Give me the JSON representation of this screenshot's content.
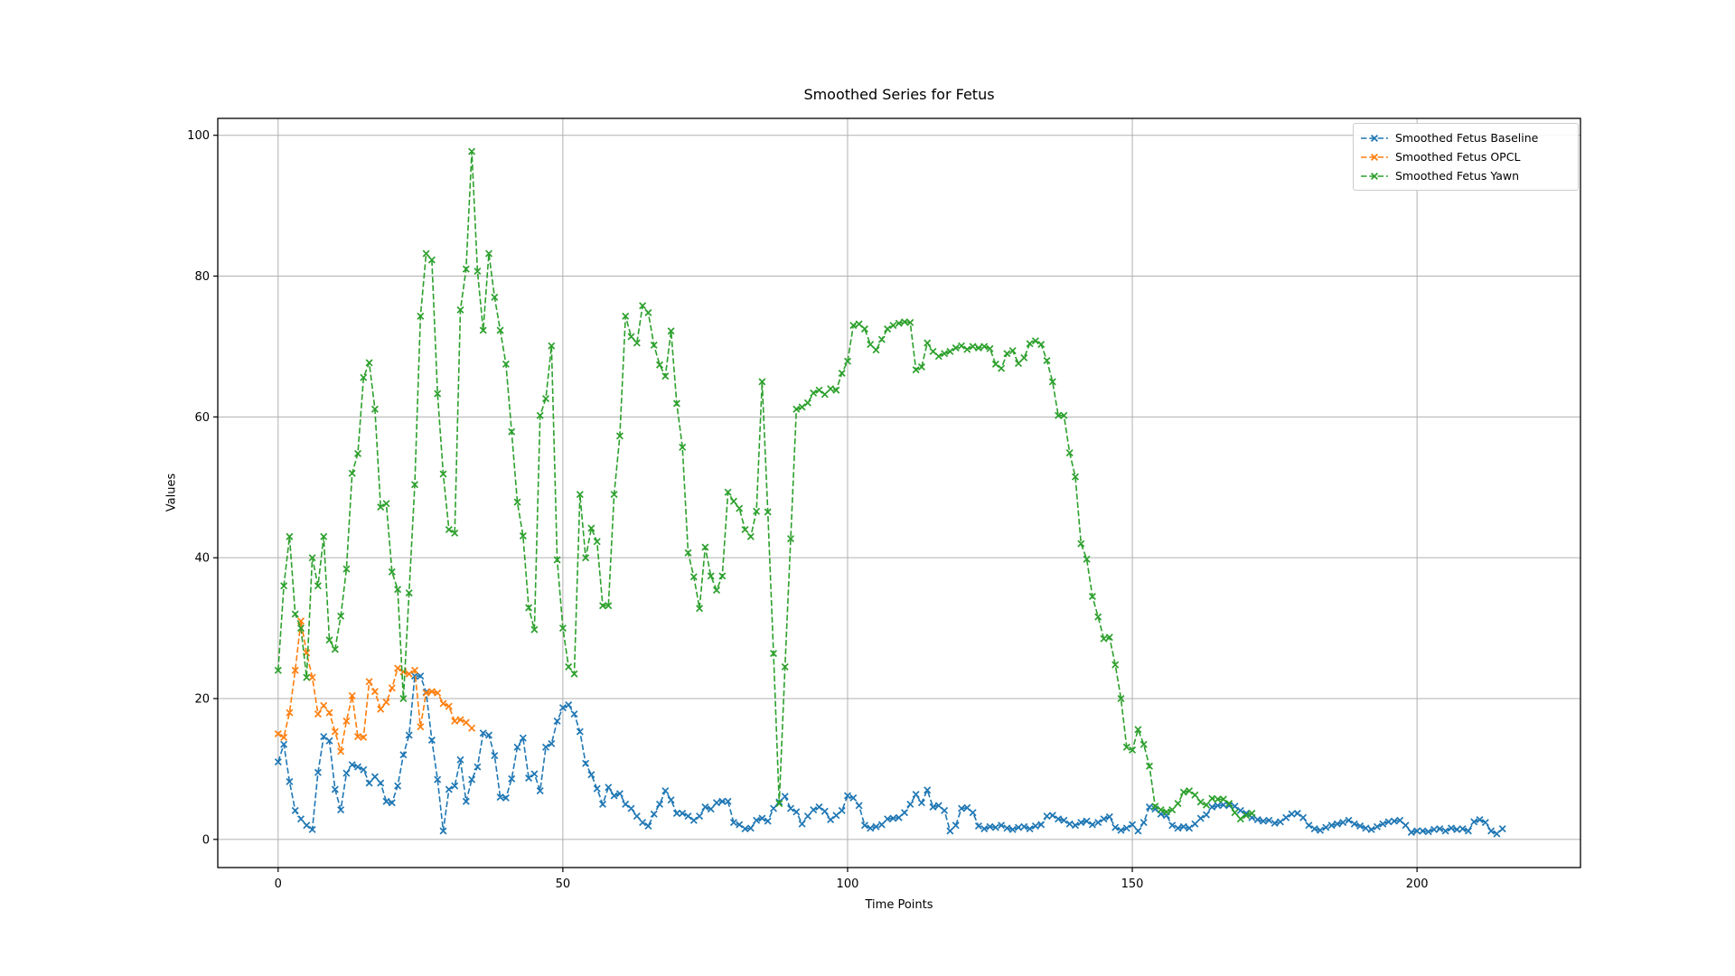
{
  "figure": {
    "background": "#ffffff"
  },
  "chart_data": {
    "type": "line",
    "title": "Smoothed Series for Fetus",
    "xlabel": "Time Points",
    "ylabel": "Values",
    "linestyle": "dashed",
    "marker": "x",
    "grid": true,
    "legend_position": "upper right",
    "x_ticks": [
      0,
      50,
      100,
      150,
      200
    ],
    "y_ticks": [
      0,
      20,
      40,
      60,
      80,
      100
    ],
    "xlim": [
      -10.6,
      228.7
    ],
    "ylim": [
      -4.0,
      102.4
    ],
    "grid_color": "#b0b0b0",
    "axes_color": "#000000",
    "series": [
      {
        "name": "Smoothed Fetus Baseline",
        "color": "#1f77b4",
        "x_start": 0,
        "x_step": 1,
        "values": [
          11,
          13.5,
          8.2,
          4.1,
          2.9,
          2,
          1.4,
          9.5,
          14.6,
          14,
          7.1,
          4.2,
          9.4,
          10.6,
          10.3,
          9.9,
          8,
          8.9,
          8,
          5.4,
          5.2,
          7.6,
          12,
          14.8,
          23.2,
          23.2,
          20.9,
          14.1,
          8.5,
          1.2,
          7.1,
          7.6,
          11.3,
          5.4,
          8.5,
          10.3,
          15.1,
          14.8,
          11.9,
          6,
          5.9,
          8.6,
          13.1,
          14.4,
          8.7,
          9.3,
          6.9,
          13.1,
          13.6,
          16.8,
          18.7,
          19.1,
          17.8,
          15.3,
          10.8,
          9.2,
          7.2,
          5,
          7.4,
          6.2,
          6.5,
          5,
          4.4,
          3.3,
          2.4,
          1.9,
          3.6,
          5,
          6.9,
          5.6,
          3.7,
          3.7,
          3.3,
          2.7,
          3.3,
          4.6,
          4.3,
          5.2,
          5.4,
          5.4,
          2.4,
          2.1,
          1.5,
          1.6,
          2.7,
          3,
          2.6,
          4.4,
          5.3,
          6.1,
          4.4,
          3.9,
          2.2,
          3.3,
          4.2,
          4.6,
          4,
          2.8,
          3.4,
          4.1,
          6.2,
          5.9,
          4.8,
          2,
          1.6,
          1.8,
          2.1,
          2.9,
          3,
          3.1,
          3.8,
          5,
          6.4,
          5.2,
          7,
          4.6,
          4.8,
          4.1,
          1.2,
          2,
          4.4,
          4.5,
          3.8,
          1.9,
          1.5,
          1.8,
          1.7,
          2,
          1.6,
          1.4,
          1.7,
          1.8,
          1.5,
          1.9,
          2.1,
          3.3,
          3.4,
          2.9,
          2.7,
          2.2,
          2,
          2.4,
          2.6,
          2.1,
          2.4,
          2.9,
          3.2,
          1.7,
          1.3,
          1.6,
          2.1,
          1.2,
          2.4,
          4.6,
          4.3,
          3.6,
          3.4,
          2,
          1.6,
          1.8,
          1.6,
          2.2,
          3,
          3.5,
          4.6,
          4.8,
          4.9,
          4.8,
          4.7,
          4.1,
          3.7,
          3.1,
          2.8,
          2.6,
          2.7,
          2.3,
          2.5,
          3.1,
          3.6,
          3.7,
          3.1,
          2,
          1.5,
          1.3,
          1.7,
          2,
          2.2,
          2.4,
          2.7,
          2.2,
          1.9,
          1.6,
          1.4,
          1.8,
          2.2,
          2.5,
          2.6,
          2.7,
          2,
          1,
          1.2,
          1.2,
          1.1,
          1.4,
          1.5,
          1.2,
          1.6,
          1.4,
          1.5,
          1.2,
          2.5,
          2.8,
          2.4,
          1.2,
          0.8,
          1.5
        ]
      },
      {
        "name": "Smoothed Fetus OPCL",
        "color": "#ff7f0e",
        "x_start": 0,
        "x_step": 1,
        "values": [
          15,
          14.5,
          18,
          24,
          31,
          26.5,
          23,
          17.8,
          19,
          18,
          15.3,
          12.5,
          16.8,
          20.4,
          14.6,
          14.5,
          22.4,
          21,
          18.5,
          19.5,
          21.5,
          24.3,
          23.8,
          23.5,
          24,
          16,
          20.8,
          21,
          20.8,
          19.3,
          18.9,
          16.8,
          17,
          16.6,
          15.8
        ]
      },
      {
        "name": "Smoothed Fetus Yawn",
        "color": "#2ca02c",
        "x_start": 0,
        "x_step": 1,
        "values": [
          24,
          36,
          43,
          32,
          30,
          23,
          40,
          36,
          43,
          28.3,
          27,
          31.7,
          38.4,
          52,
          54.8,
          65.6,
          67.7,
          61.1,
          47.2,
          47.7,
          38,
          35.5,
          20,
          35,
          50.4,
          74.3,
          83.2,
          82.3,
          63.3,
          51.9,
          44,
          43.5,
          75.2,
          81,
          97.7,
          80.7,
          72.3,
          83.2,
          77,
          72.3,
          67.5,
          57.9,
          47.9,
          43.1,
          32.9,
          29.8,
          60.2,
          62.6,
          70.1,
          39.7,
          30,
          24.5,
          23.5,
          49,
          40,
          44.2,
          42.3,
          33.2,
          33.2,
          49,
          57.3,
          74.3,
          71.4,
          70.5,
          75.8,
          74.8,
          70.2,
          67.4,
          65.8,
          72.2,
          61.9,
          55.7,
          40.7,
          37.3,
          32.8,
          41.5,
          37.4,
          35.4,
          37.4,
          49.3,
          48,
          47,
          44,
          43,
          46.6,
          65,
          46.5,
          26.4,
          5.1,
          24.5,
          42.7,
          61.1,
          61.4,
          62,
          63.4,
          63.8,
          63.2,
          64,
          63.8,
          66.2,
          67.9,
          73,
          73.2,
          72.5,
          70.3,
          69.5,
          71,
          72.5,
          73,
          73.3,
          73.5,
          73.4,
          66.7,
          67.1,
          70.5,
          69.3,
          68.6,
          69,
          69.3,
          69.8,
          70.1,
          69.6,
          70,
          69.8,
          70,
          69.7,
          67.5,
          66.9,
          69,
          69.4,
          67.6,
          68.4,
          70.4,
          70.8,
          70.3,
          68,
          65,
          60.2,
          60.2,
          54.9,
          51.5,
          42,
          39.8,
          34.5,
          31.6,
          28.5,
          28.7,
          24.8,
          20,
          13.1,
          12.7,
          15.6,
          13.5,
          10.4,
          4.7,
          4.2,
          3.9,
          4.2,
          5.1,
          6.7,
          6.9,
          6.3,
          5.3,
          4.9,
          5.8,
          5.7,
          5.7,
          5.1,
          3.8,
          2.9,
          3.4,
          3.7
        ]
      }
    ]
  }
}
